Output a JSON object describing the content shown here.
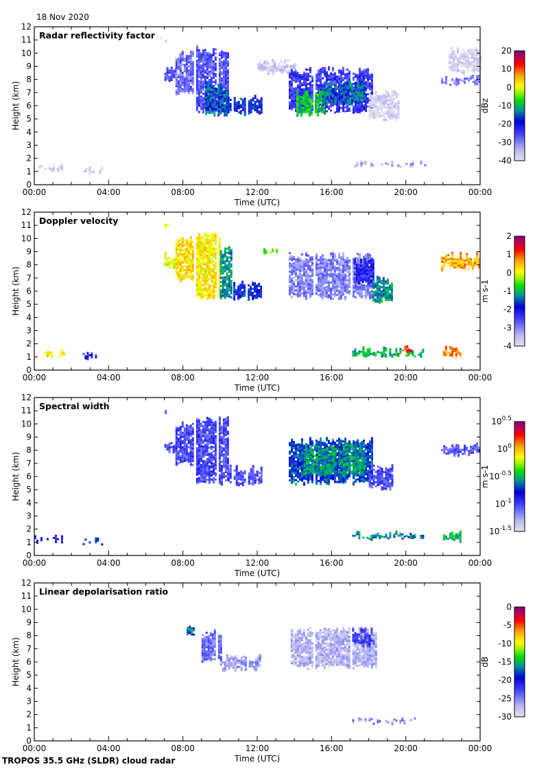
{
  "header": {
    "date": "18 Nov 2020"
  },
  "footer": {
    "label": "TROPOS 35.5 GHz (SLDR) cloud radar"
  },
  "chart_data": [
    {
      "type": "heatmap",
      "title": "Radar reflectivity factor",
      "xlabel": "Time (UTC)",
      "ylabel": "Height (km)",
      "xticks": [
        "00:00",
        "04:00",
        "08:00",
        "12:00",
        "16:00",
        "20:00",
        "00:00"
      ],
      "xlim": [
        0,
        24
      ],
      "ylim": [
        0,
        12
      ],
      "colorbar": {
        "label": "dBz",
        "range": [
          -40,
          20
        ],
        "ticks": [
          "20",
          "10",
          "0",
          "-10",
          "-20",
          "-30",
          "-40"
        ],
        "scale": "linear"
      },
      "regions": [
        [
          6.8,
          7.2,
          10.7,
          11.2,
          -36
        ],
        [
          7.0,
          7.6,
          7.8,
          9.0,
          -26
        ],
        [
          7.6,
          8.6,
          6.8,
          10.2,
          -28
        ],
        [
          8.6,
          10.4,
          5.4,
          10.6,
          -26
        ],
        [
          9.2,
          10.4,
          5.2,
          7.8,
          -15
        ],
        [
          10.4,
          12.2,
          5.3,
          6.9,
          -18
        ],
        [
          12.0,
          14.0,
          8.4,
          9.6,
          -37
        ],
        [
          13.7,
          18.2,
          5.4,
          9.0,
          -24
        ],
        [
          14.1,
          15.6,
          5.2,
          7.3,
          -8
        ],
        [
          15.5,
          17.8,
          6.0,
          8.0,
          -14
        ],
        [
          18.0,
          19.6,
          4.9,
          7.2,
          -38
        ],
        [
          21.9,
          24.0,
          7.6,
          8.4,
          -30
        ],
        [
          22.3,
          24.0,
          8.4,
          10.5,
          -38
        ],
        [
          0.0,
          1.6,
          1.0,
          1.6,
          -38
        ],
        [
          2.6,
          3.6,
          0.8,
          1.4,
          -38
        ],
        [
          17.0,
          21.0,
          1.3,
          1.9,
          -32
        ]
      ]
    },
    {
      "type": "heatmap",
      "title": "Doppler velocity",
      "xlabel": "Time (UTC)",
      "ylabel": "Height (km)",
      "xticks": [
        "00:00",
        "04:00",
        "08:00",
        "12:00",
        "16:00",
        "20:00",
        "00:00"
      ],
      "xlim": [
        0,
        24
      ],
      "ylim": [
        0,
        12
      ],
      "colorbar": {
        "label": "m s-1",
        "range": [
          -4,
          2
        ],
        "ticks": [
          "2",
          "1",
          "0",
          "-1",
          "-2",
          "-3",
          "-4"
        ],
        "scale": "linear"
      },
      "regions": [
        [
          6.8,
          7.2,
          10.7,
          11.2,
          0.3
        ],
        [
          7.0,
          7.6,
          7.8,
          9.0,
          0.0
        ],
        [
          7.6,
          8.6,
          6.8,
          10.2,
          0.3
        ],
        [
          8.6,
          10.0,
          5.4,
          10.6,
          0.2
        ],
        [
          10.0,
          10.6,
          5.2,
          9.5,
          -1.2
        ],
        [
          10.6,
          12.2,
          5.3,
          6.9,
          -1.8
        ],
        [
          12.0,
          13.0,
          8.8,
          9.3,
          -0.6
        ],
        [
          13.7,
          18.2,
          5.4,
          9.0,
          -3.0
        ],
        [
          17.2,
          18.2,
          6.5,
          8.6,
          -2.2
        ],
        [
          18.2,
          19.2,
          5.0,
          7.2,
          -1.2
        ],
        [
          21.9,
          24.0,
          7.6,
          9.0,
          0.6
        ],
        [
          0.0,
          1.6,
          1.0,
          1.6,
          0.2
        ],
        [
          2.6,
          3.6,
          0.8,
          1.4,
          -2.2
        ],
        [
          17.0,
          21.0,
          1.0,
          1.8,
          -1.0
        ],
        [
          19.8,
          20.3,
          1.2,
          2.0,
          1.2
        ],
        [
          22.0,
          22.9,
          1.0,
          1.9,
          0.8
        ]
      ]
    },
    {
      "type": "heatmap",
      "title": "Spectral width",
      "xlabel": "Time (UTC)",
      "ylabel": "Height (km)",
      "xticks": [
        "00:00",
        "04:00",
        "08:00",
        "12:00",
        "16:00",
        "20:00",
        "00:00"
      ],
      "xlim": [
        0,
        24
      ],
      "ylim": [
        0,
        12
      ],
      "colorbar": {
        "label": "m s-1",
        "range": [
          -1.5,
          0.5
        ],
        "ticks": [
          "10^0.5",
          "10^0",
          "10^-0.5",
          "10^-1",
          "10^-1.5"
        ],
        "scale": "log10"
      },
      "regions": [
        [
          6.8,
          7.2,
          10.7,
          11.2,
          -1.1
        ],
        [
          7.0,
          7.6,
          7.8,
          9.0,
          -1.0
        ],
        [
          7.6,
          8.6,
          6.8,
          10.2,
          -1.0
        ],
        [
          8.6,
          10.4,
          5.4,
          10.6,
          -1.0
        ],
        [
          10.4,
          12.2,
          5.3,
          6.9,
          -1.0
        ],
        [
          13.7,
          18.2,
          5.4,
          9.0,
          -0.7
        ],
        [
          14.5,
          17.8,
          6.0,
          8.6,
          -0.55
        ],
        [
          18.0,
          19.3,
          5.0,
          7.0,
          -1.0
        ],
        [
          21.9,
          24.0,
          7.6,
          8.6,
          -1.05
        ],
        [
          0.0,
          1.6,
          1.0,
          1.6,
          -0.9
        ],
        [
          2.6,
          3.6,
          0.8,
          1.4,
          -0.7
        ],
        [
          17.0,
          21.0,
          1.2,
          1.9,
          -0.6
        ],
        [
          22.0,
          22.9,
          1.0,
          1.9,
          -0.5
        ]
      ]
    },
    {
      "type": "heatmap",
      "title": "Linear depolarisation ratio",
      "xlabel": "Time (UTC)",
      "ylabel": "Height (km)",
      "xticks": [
        "00:00",
        "04:00",
        "08:00",
        "12:00",
        "16:00",
        "20:00",
        "00:00"
      ],
      "xlim": [
        0,
        24
      ],
      "ylim": [
        0,
        12
      ],
      "colorbar": {
        "label": "dB",
        "range": [
          -30,
          0
        ],
        "ticks": [
          "0",
          "-5",
          "-10",
          "-15",
          "-20",
          "-25",
          "-30"
        ],
        "scale": "linear"
      },
      "regions": [
        [
          8.2,
          8.6,
          7.8,
          8.8,
          -17
        ],
        [
          9.0,
          10.0,
          6.0,
          8.5,
          -24
        ],
        [
          10.0,
          12.2,
          5.3,
          6.6,
          -26
        ],
        [
          13.8,
          18.4,
          5.5,
          8.7,
          -27
        ],
        [
          17.0,
          18.3,
          7.2,
          8.7,
          -22
        ],
        [
          17.0,
          20.5,
          1.3,
          1.8,
          -25
        ],
        [
          21.8,
          22.5,
          1.4,
          1.6,
          -24
        ]
      ]
    }
  ]
}
